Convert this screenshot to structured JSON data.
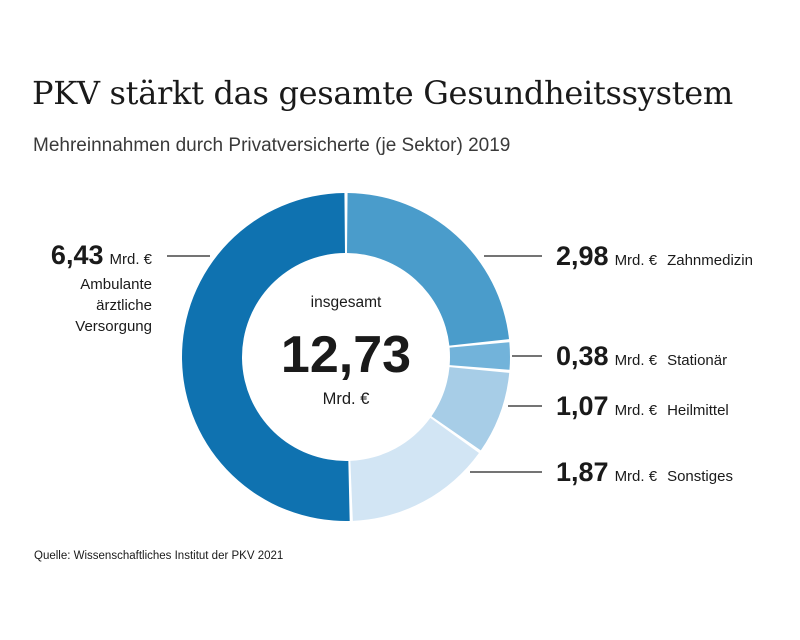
{
  "title": "PKV stärkt das gesamte Gesundheitssystem",
  "subtitle": "Mehreinnahmen durch Privatversicherte (je Sektor) 2019",
  "source": "Quelle: Wissenschaftliches Institut der PKV 2021",
  "colors": {
    "ambulant": "#0f72b0",
    "zahn": "#4a9ccb",
    "stationaer": "#72b3da",
    "heilmittel": "#a7cde7",
    "sonstiges": "#d2e5f4",
    "leader": "#222222"
  },
  "chart_data": {
    "type": "pie",
    "variant": "donut",
    "center": {
      "label": "insgesamt",
      "value": "12,73",
      "unit": "Mrd. €"
    },
    "total": 12.73,
    "unit": "Mrd. €",
    "slices": [
      {
        "value": 2.98,
        "value_label": "2,98",
        "unit": "Mrd. €",
        "label": "Zahnmedizin",
        "color_key": "zahn"
      },
      {
        "value": 0.38,
        "value_label": "0,38",
        "unit": "Mrd. €",
        "label": "Stationär",
        "color_key": "stationaer"
      },
      {
        "value": 1.07,
        "value_label": "1,07",
        "unit": "Mrd. €",
        "label": "Heilmittel",
        "color_key": "heilmittel"
      },
      {
        "value": 1.87,
        "value_label": "1,87",
        "unit": "Mrd. €",
        "label": "Sonstiges",
        "color_key": "sonstiges"
      },
      {
        "value": 6.43,
        "value_label": "6,43",
        "unit": "Mrd. €",
        "label_lines": [
          "Ambulante",
          "ärztliche",
          "Versorgung"
        ],
        "color_key": "ambulant"
      }
    ]
  }
}
